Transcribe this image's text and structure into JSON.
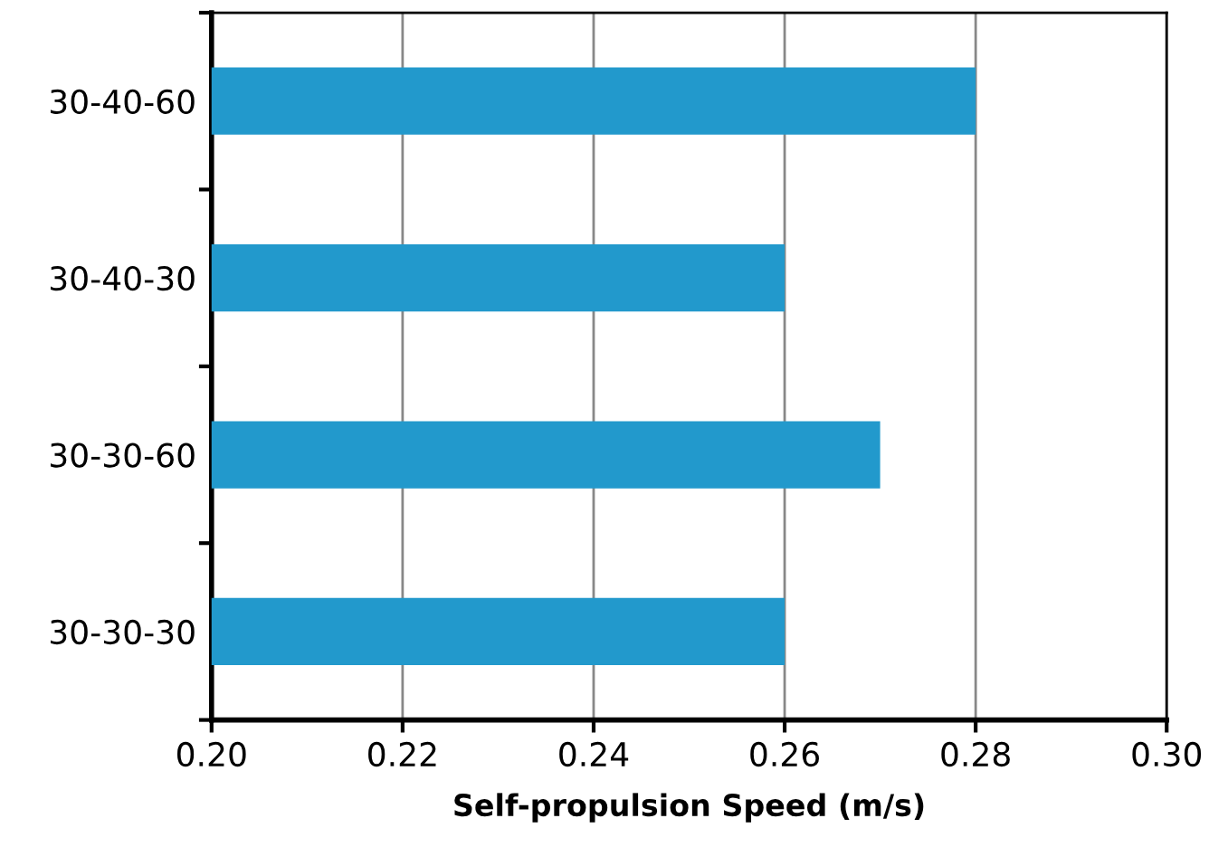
{
  "chart_data": {
    "type": "bar",
    "orientation": "horizontal",
    "xlabel": "Self-propulsion Speed (m/s)",
    "categories": [
      "30-40-60",
      "30-40-30",
      "30-30-60",
      "30-30-30"
    ],
    "values": [
      0.28,
      0.26,
      0.27,
      0.26
    ],
    "color": "#2299cc",
    "xlim": [
      0.2,
      0.3
    ],
    "xticks": [
      {
        "value": 0.2,
        "label": "0.20"
      },
      {
        "value": 0.22,
        "label": "0.22"
      },
      {
        "value": 0.24,
        "label": "0.24"
      },
      {
        "value": 0.26,
        "label": "0.26"
      },
      {
        "value": 0.28,
        "label": "0.28"
      },
      {
        "value": 0.3,
        "label": "0.30"
      }
    ],
    "grid": "x",
    "legend": false
  }
}
